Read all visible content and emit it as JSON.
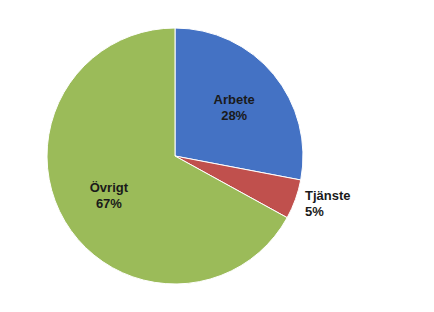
{
  "chart_data": {
    "type": "pie",
    "categories": [
      "Arbete",
      "Tjänste",
      "Övrigt"
    ],
    "values": [
      28,
      5,
      67
    ],
    "value_labels": [
      "28%",
      "5%",
      "67%"
    ],
    "data_labels": true,
    "colors": [
      "#4472C4",
      "#C0504D",
      "#9BBB59"
    ]
  }
}
